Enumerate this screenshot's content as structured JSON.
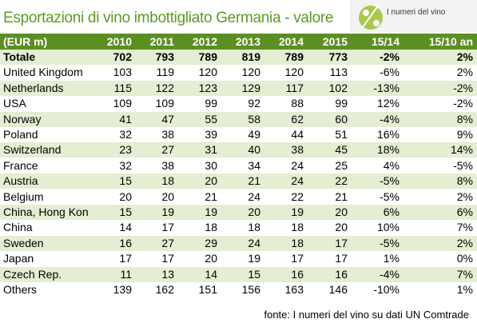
{
  "header": {
    "title": "Esportazioni di vino imbottigliato Germania - valore",
    "logo": "I numeri del vino"
  },
  "table": {
    "columns": [
      "(EUR m)",
      "2010",
      "2011",
      "2012",
      "2013",
      "2014",
      "2015",
      "15/14",
      "15/10 an"
    ],
    "rows": [
      [
        "Totale",
        "702",
        "793",
        "789",
        "819",
        "789",
        "773",
        "-2%",
        "2%"
      ],
      [
        "United Kingdom",
        "103",
        "119",
        "120",
        "120",
        "120",
        "113",
        "-6%",
        "2%"
      ],
      [
        "Netherlands",
        "115",
        "122",
        "123",
        "129",
        "117",
        "102",
        "-13%",
        "-2%"
      ],
      [
        "USA",
        "109",
        "109",
        "99",
        "92",
        "88",
        "99",
        "12%",
        "-2%"
      ],
      [
        "Norway",
        "41",
        "47",
        "55",
        "58",
        "62",
        "60",
        "-4%",
        "8%"
      ],
      [
        "Poland",
        "32",
        "38",
        "39",
        "49",
        "44",
        "51",
        "16%",
        "9%"
      ],
      [
        "Switzerland",
        "23",
        "27",
        "31",
        "40",
        "38",
        "45",
        "18%",
        "14%"
      ],
      [
        "France",
        "32",
        "38",
        "30",
        "34",
        "24",
        "25",
        "4%",
        "-5%"
      ],
      [
        "Austria",
        "15",
        "18",
        "20",
        "21",
        "24",
        "22",
        "-5%",
        "8%"
      ],
      [
        "Belgium",
        "20",
        "20",
        "21",
        "24",
        "22",
        "21",
        "-5%",
        "2%"
      ],
      [
        "China, Hong Kon",
        "15",
        "19",
        "19",
        "20",
        "19",
        "20",
        "6%",
        "6%"
      ],
      [
        "China",
        "14",
        "17",
        "18",
        "18",
        "18",
        "20",
        "10%",
        "7%"
      ],
      [
        "Sweden",
        "16",
        "27",
        "29",
        "24",
        "18",
        "17",
        "-5%",
        "2%"
      ],
      [
        "Japan",
        "17",
        "17",
        "20",
        "19",
        "17",
        "17",
        "1%",
        "0%"
      ],
      [
        "Czech Rep.",
        "11",
        "13",
        "14",
        "15",
        "16",
        "16",
        "-4%",
        "7%"
      ],
      [
        "Others",
        "139",
        "162",
        "151",
        "156",
        "163",
        "146",
        "-10%",
        "1%"
      ]
    ]
  },
  "footer": {
    "source": "fonte: I numeri del vino su dati UN Comtrade"
  }
}
